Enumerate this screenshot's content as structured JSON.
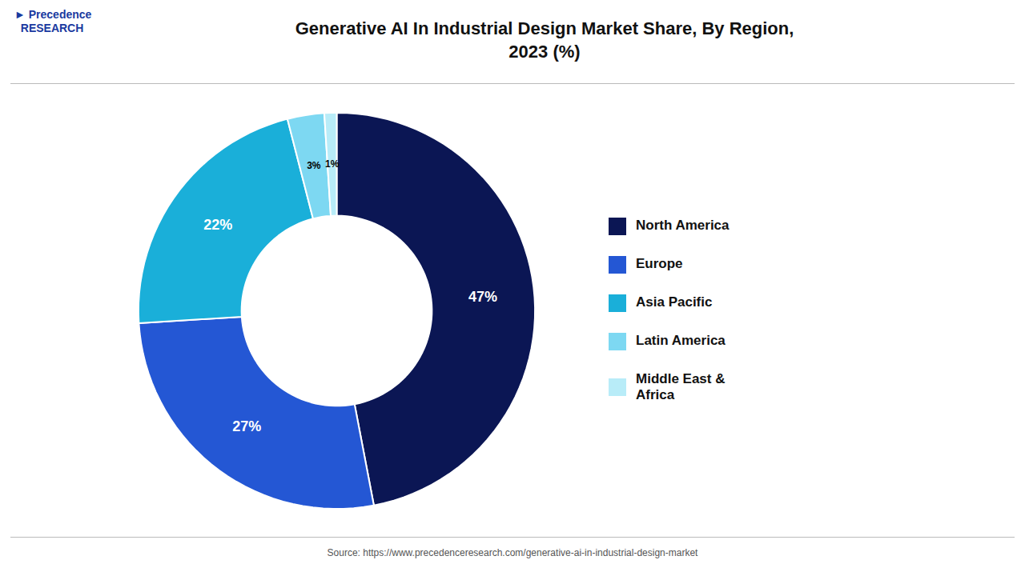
{
  "chart_data": {
    "type": "donut",
    "title": "Generative AI In Industrial Design Market Share, By Region,\n2023 (%)",
    "categories": [
      "North America",
      "Europe",
      "Asia Pacific",
      "Latin America",
      "Middle East &\nAfrica"
    ],
    "values": [
      47,
      27,
      22,
      3,
      1
    ],
    "value_labels": [
      "47%",
      "27%",
      "22%",
      "3%",
      "1%"
    ],
    "colors": [
      "#0b1654",
      "#2457d4",
      "#1aafd9",
      "#7dd8f2",
      "#b8ecf8"
    ],
    "data_labels": true,
    "legend": "right",
    "annotations": [
      "► Precedence\n  RESEARCH",
      "Source: https://www.precedenceresearch.com/generative-ai-in-industrial-design-market"
    ]
  }
}
